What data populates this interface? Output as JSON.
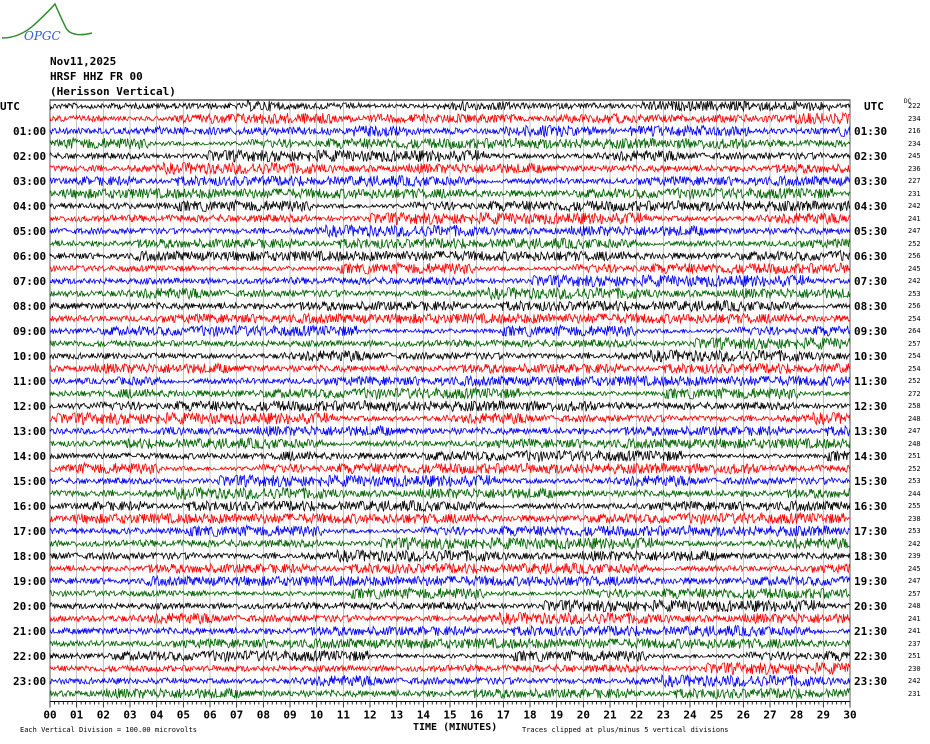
{
  "logo_text": "OPGC",
  "header": {
    "date": "Nov11,2025",
    "station": "HRSF HHZ FR 00",
    "description": "(Herisson Vertical)"
  },
  "chart_data": {
    "type": "line",
    "title": "Nov11,2025 HRSF HHZ FR 00 (Herisson Vertical)",
    "xlabel": "TIME (MINUTES)",
    "xlim": [
      0,
      30
    ],
    "x_tick_labels": [
      "00",
      "01",
      "02",
      "03",
      "04",
      "05",
      "06",
      "07",
      "08",
      "09",
      "10",
      "11",
      "12",
      "13",
      "14",
      "15",
      "16",
      "17",
      "18",
      "19",
      "20",
      "21",
      "22",
      "23",
      "24",
      "25",
      "26",
      "27",
      "28",
      "29",
      "30"
    ],
    "left_axis_header": "UTC",
    "right_axis_header": "UTC",
    "left_labels": [
      "01:00",
      "02:00",
      "03:00",
      "04:00",
      "05:00",
      "06:00",
      "07:00",
      "08:00",
      "09:00",
      "10:00",
      "11:00",
      "12:00",
      "13:00",
      "14:00",
      "15:00",
      "16:00",
      "17:00",
      "18:00",
      "19:00",
      "20:00",
      "21:00",
      "22:00",
      "23:00"
    ],
    "right_labels": [
      "01:30",
      "02:30",
      "03:30",
      "04:30",
      "05:30",
      "06:30",
      "07:30",
      "08:30",
      "09:30",
      "10:30",
      "11:30",
      "12:30",
      "13:30",
      "14:30",
      "15:30",
      "16:30",
      "17:30",
      "18:30",
      "19:30",
      "20:30",
      "21:30",
      "22:30",
      "23:30"
    ],
    "right_column_header": "DC",
    "row_values": [
      222,
      234,
      216,
      234,
      245,
      236,
      227,
      231,
      242,
      241,
      247,
      252,
      256,
      245,
      242,
      253,
      256,
      254,
      264,
      257,
      254,
      254,
      252,
      272,
      258,
      248,
      247,
      248,
      251,
      252,
      253,
      244,
      255,
      238,
      253,
      242,
      239,
      245,
      247,
      257,
      248,
      241,
      241,
      237,
      251,
      230,
      242,
      231
    ],
    "trace_colors": [
      "#000000",
      "#ff0000",
      "#0000ff",
      "#006400"
    ],
    "grid": true,
    "scale_note": "Each Vertical Division =  100.00 microvolts",
    "clip_note": "Traces clipped at plus/minus 5 vertical divisions"
  }
}
